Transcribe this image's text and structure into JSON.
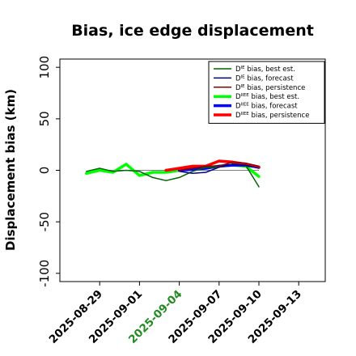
{
  "chart_data": {
    "type": "line",
    "title": "Bias, ice edge displacement",
    "ylabel": "Displacement bias (km)",
    "xlabel": "",
    "ylim": [
      -108,
      108
    ],
    "xlim": [
      "2025-08-26",
      "2025-09-15"
    ],
    "yticks": [
      -100,
      -50,
      0,
      50,
      100
    ],
    "xticks": [
      {
        "date": "2025-08-29",
        "label": "2025-08-29",
        "color": "#000000"
      },
      {
        "date": "2025-09-01",
        "label": "2025-09-01",
        "color": "#000000"
      },
      {
        "date": "2025-09-04",
        "label": "2025-09-04",
        "color": "#228b22"
      },
      {
        "date": "2025-09-07",
        "label": "2025-09-07",
        "color": "#000000"
      },
      {
        "date": "2025-09-10",
        "label": "2025-09-10",
        "color": "#000000"
      },
      {
        "date": "2025-09-13",
        "label": "2025-09-13",
        "color": "#000000"
      }
    ],
    "zero_line": {
      "from": "2025-08-29",
      "to": "2025-09-10",
      "y": 0
    },
    "legend_position": "top-right",
    "grid": false,
    "series": [
      {
        "name_base": "D",
        "name_sup": "IE",
        "name_rest": " bias, best est.",
        "color": "#006400",
        "width": 1.5,
        "x": [
          "2025-08-28",
          "2025-08-29",
          "2025-08-30",
          "2025-08-31",
          "2025-09-01",
          "2025-09-02",
          "2025-09-03",
          "2025-09-04",
          "2025-09-05",
          "2025-09-06",
          "2025-09-07",
          "2025-09-08",
          "2025-09-09",
          "2025-09-10"
        ],
        "y": [
          -1,
          2,
          -1,
          0,
          -1,
          -7,
          -10,
          -7,
          -1,
          3,
          3,
          6,
          5,
          -16
        ]
      },
      {
        "name_base": "D",
        "name_sup": "IE",
        "name_rest": " bias, forecast",
        "color": "#00008b",
        "width": 1.5,
        "x": [
          "2025-09-04",
          "2025-09-05",
          "2025-09-06",
          "2025-09-07",
          "2025-09-08",
          "2025-09-09",
          "2025-09-10"
        ],
        "y": [
          -1,
          -3,
          -2,
          3,
          6,
          5,
          2
        ]
      },
      {
        "name_base": "D",
        "name_sup": "IE",
        "name_rest": " bias, persistence",
        "color": "#8b0000",
        "width": 1.5,
        "x": [
          "2025-09-04",
          "2025-09-05",
          "2025-09-06",
          "2025-09-07",
          "2025-09-08",
          "2025-09-09",
          "2025-09-10"
        ],
        "y": [
          0,
          2,
          4,
          4,
          8,
          7,
          4
        ]
      },
      {
        "name_base": "D",
        "name_sup": "IIEE",
        "name_rest": " bias, best est.",
        "color": "#00ff00",
        "width": 3.5,
        "x": [
          "2025-08-28",
          "2025-08-29",
          "2025-08-30",
          "2025-08-31",
          "2025-09-01",
          "2025-09-02",
          "2025-09-03",
          "2025-09-04",
          "2025-09-05",
          "2025-09-06",
          "2025-09-07",
          "2025-09-08",
          "2025-09-09",
          "2025-09-10"
        ],
        "y": [
          -3,
          0,
          -2,
          6,
          -5,
          -2,
          -2,
          0,
          2,
          3,
          4,
          5,
          4,
          -6
        ]
      },
      {
        "name_base": "D",
        "name_sup": "IIEE",
        "name_rest": " bias, forecast",
        "color": "#0000ff",
        "width": 3.5,
        "x": [
          "2025-09-04",
          "2025-09-05",
          "2025-09-06",
          "2025-09-07",
          "2025-09-08",
          "2025-09-09",
          "2025-09-10"
        ],
        "y": [
          0,
          1,
          2,
          4,
          5,
          5,
          3
        ]
      },
      {
        "name_base": "D",
        "name_sup": "IIEE",
        "name_rest": " bias, persistence",
        "color": "#ff0000",
        "width": 3.5,
        "x": [
          "2025-09-03",
          "2025-09-04",
          "2025-09-05",
          "2025-09-06",
          "2025-09-07",
          "2025-09-08",
          "2025-09-09",
          "2025-09-10"
        ],
        "y": [
          0,
          2,
          4,
          4,
          9,
          8,
          6,
          3
        ]
      }
    ]
  }
}
